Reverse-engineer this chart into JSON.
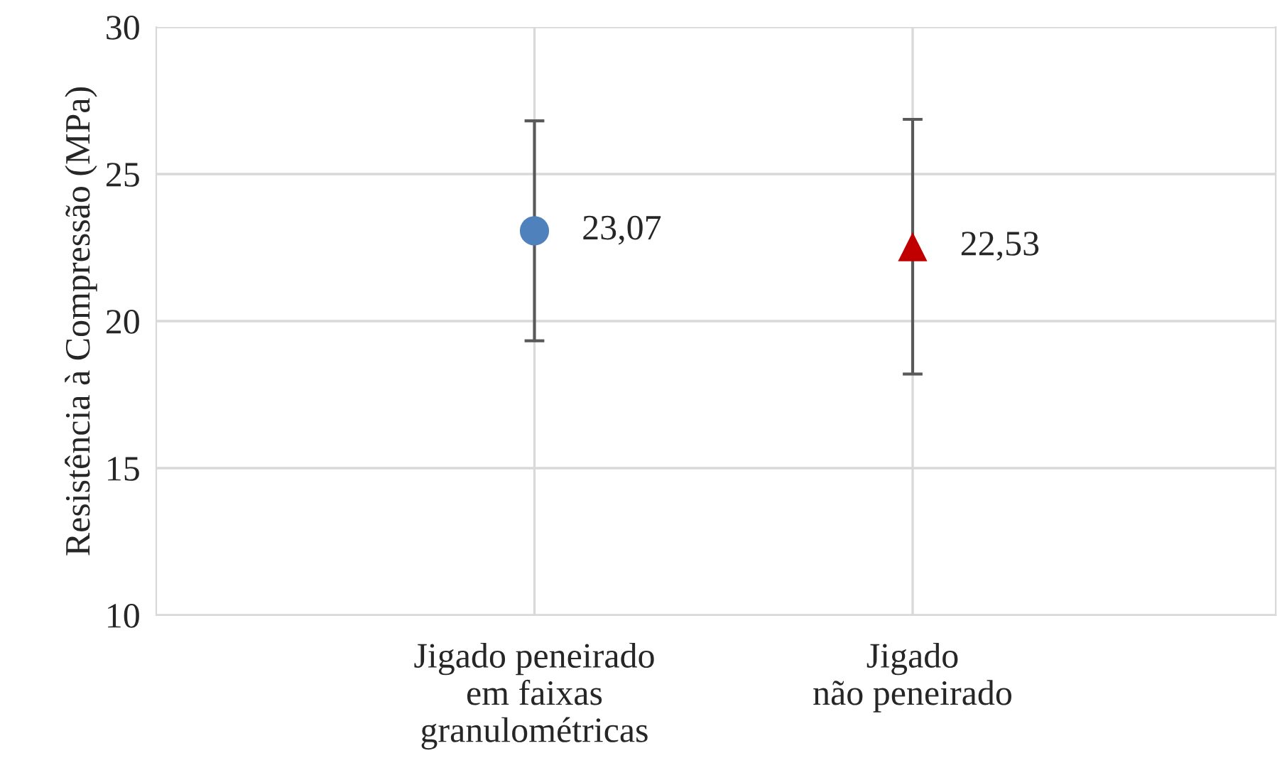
{
  "chart_data": {
    "type": "scatter",
    "ylabel": "Resistência à Compressão (MPa)",
    "categories": [
      "Jigado peneirado\nem faixas\ngranulométricas",
      "Jigado\nnão peneirado"
    ],
    "series": [
      {
        "color": "#4f81bd",
        "marker": "circle",
        "values": [
          23.07,
          null
        ],
        "errors": [
          3.74,
          null
        ],
        "value_labels": [
          "23,07",
          null
        ]
      },
      {
        "color": "#c00000",
        "marker": "triangle",
        "values": [
          null,
          22.53
        ],
        "errors": [
          null,
          4.33
        ],
        "value_labels": [
          null,
          "22,53"
        ]
      }
    ],
    "ylim": [
      10,
      30
    ],
    "yticks": [
      10,
      15,
      20,
      25,
      30
    ],
    "grid": true,
    "legend": false
  }
}
